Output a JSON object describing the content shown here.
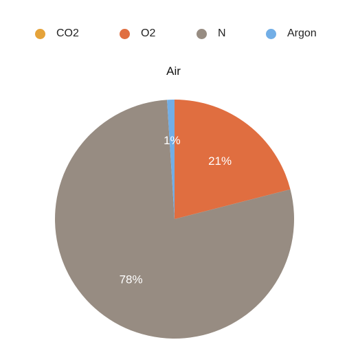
{
  "chart_data": {
    "type": "pie",
    "title": "Air",
    "legend_position": "top",
    "slices": [
      {
        "name": "CO2",
        "value": 0,
        "label": "",
        "color": "#E5A33A"
      },
      {
        "name": "O2",
        "value": 21,
        "label": "21%",
        "color": "#E06E40"
      },
      {
        "name": "N",
        "value": 78,
        "label": "78%",
        "color": "#978C82"
      },
      {
        "name": "Argon",
        "value": 1,
        "label": "1%",
        "color": "#72AEE6"
      }
    ]
  }
}
